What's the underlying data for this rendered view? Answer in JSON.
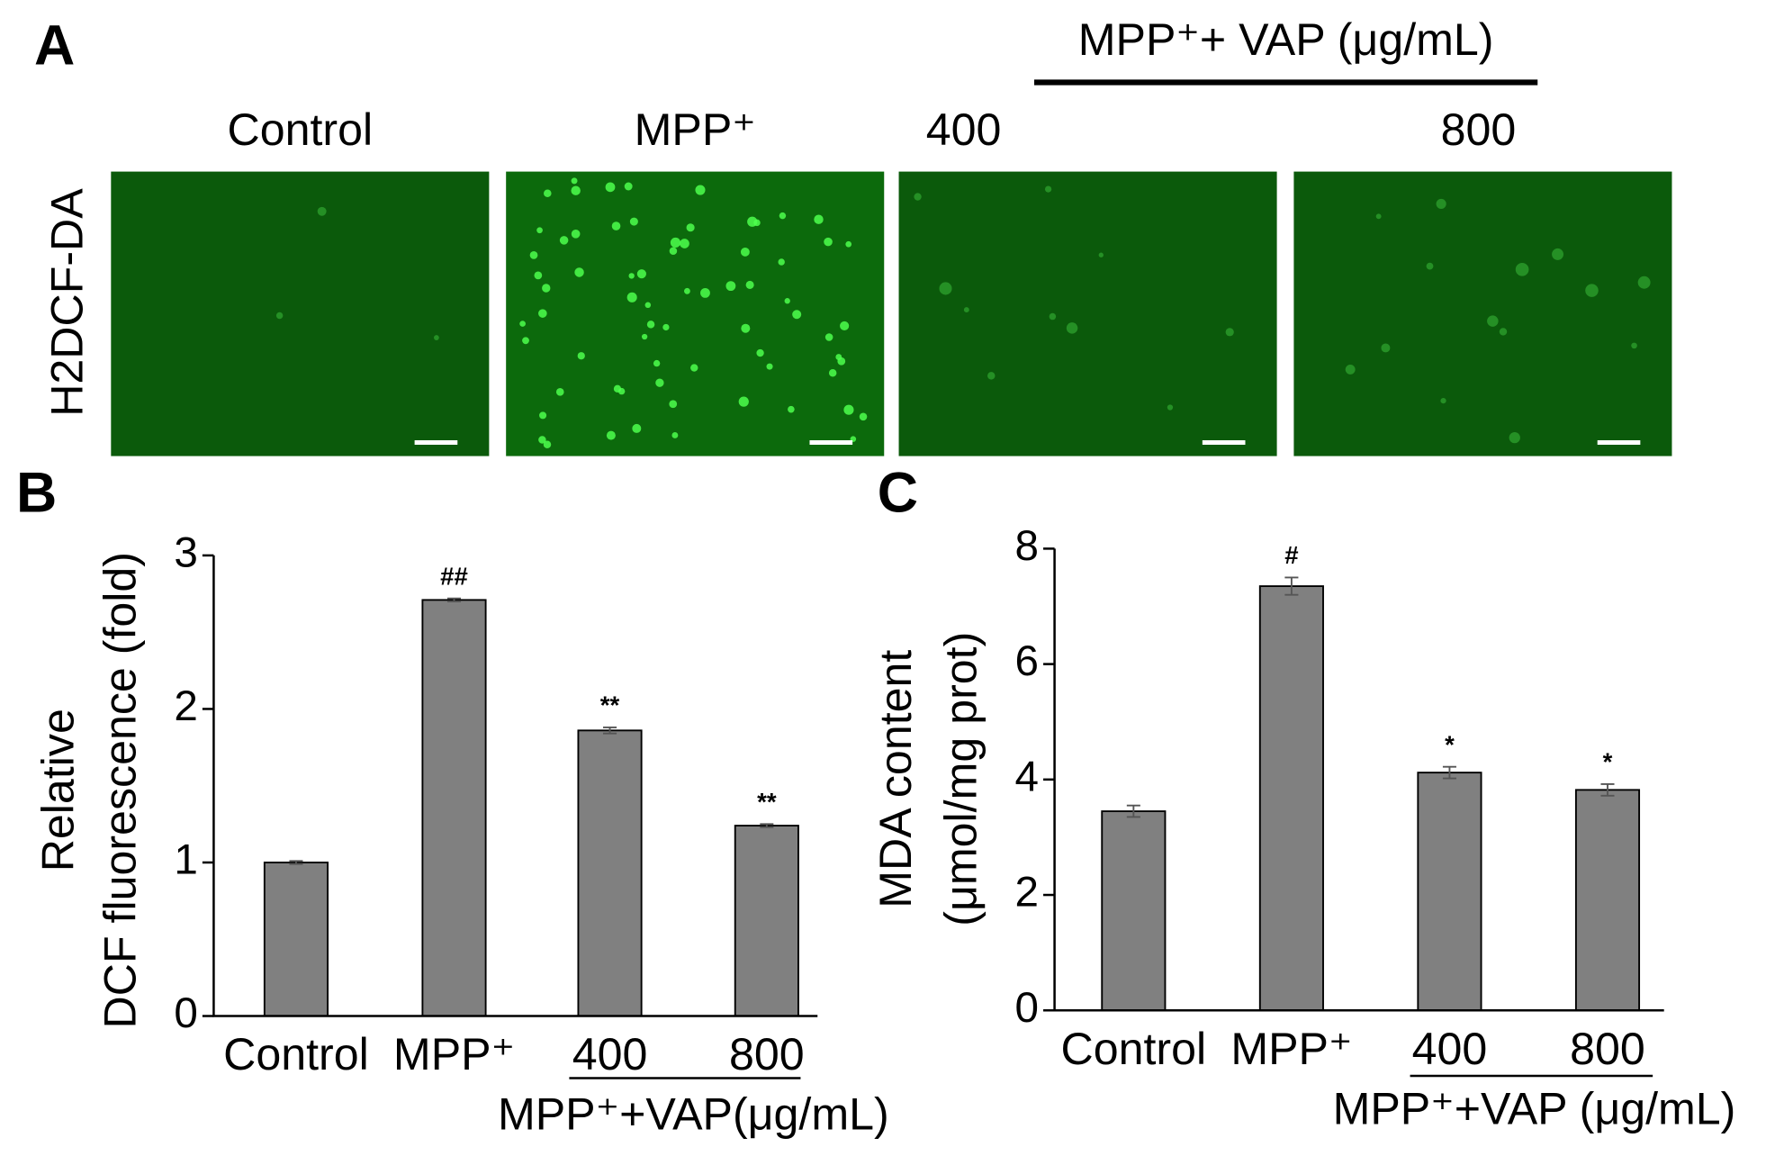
{
  "panel_a": {
    "label": "A",
    "header": "MPP⁺+ VAP (μg/mL)",
    "columns": [
      "Control",
      "MPP⁺",
      "400",
      "800"
    ],
    "row_label": "H2DCF-DA"
  },
  "chart_data": [
    {
      "type": "bar",
      "panel_label": "B",
      "ylabel": [
        "Relative",
        "DCF fluorescence (fold)"
      ],
      "categories": [
        "Control",
        "MPP⁺",
        "400",
        "800"
      ],
      "group_label": "MPP⁺+VAP(μg/mL)",
      "values": [
        1.0,
        2.71,
        1.86,
        1.24
      ],
      "errors": [
        0.01,
        0.01,
        0.02,
        0.01
      ],
      "annotations": [
        null,
        "##",
        "**",
        "**"
      ],
      "color": "#808080",
      "ylim": [
        0,
        3
      ],
      "yticks": [
        0,
        1,
        2,
        3
      ]
    },
    {
      "type": "bar",
      "panel_label": "C",
      "ylabel": [
        "MDA content",
        "(μmol/mg prot)"
      ],
      "categories": [
        "Control",
        "MPP⁺",
        "400",
        "800"
      ],
      "group_label": "MPP⁺+VAP (μg/mL)",
      "values": [
        3.45,
        7.35,
        4.12,
        3.82
      ],
      "errors": [
        0.1,
        0.15,
        0.1,
        0.1
      ],
      "annotations": [
        null,
        "#",
        "*",
        "*"
      ],
      "color": "#808080",
      "ylim": [
        0,
        8
      ],
      "yticks": [
        0,
        2,
        4,
        6,
        8
      ]
    }
  ]
}
